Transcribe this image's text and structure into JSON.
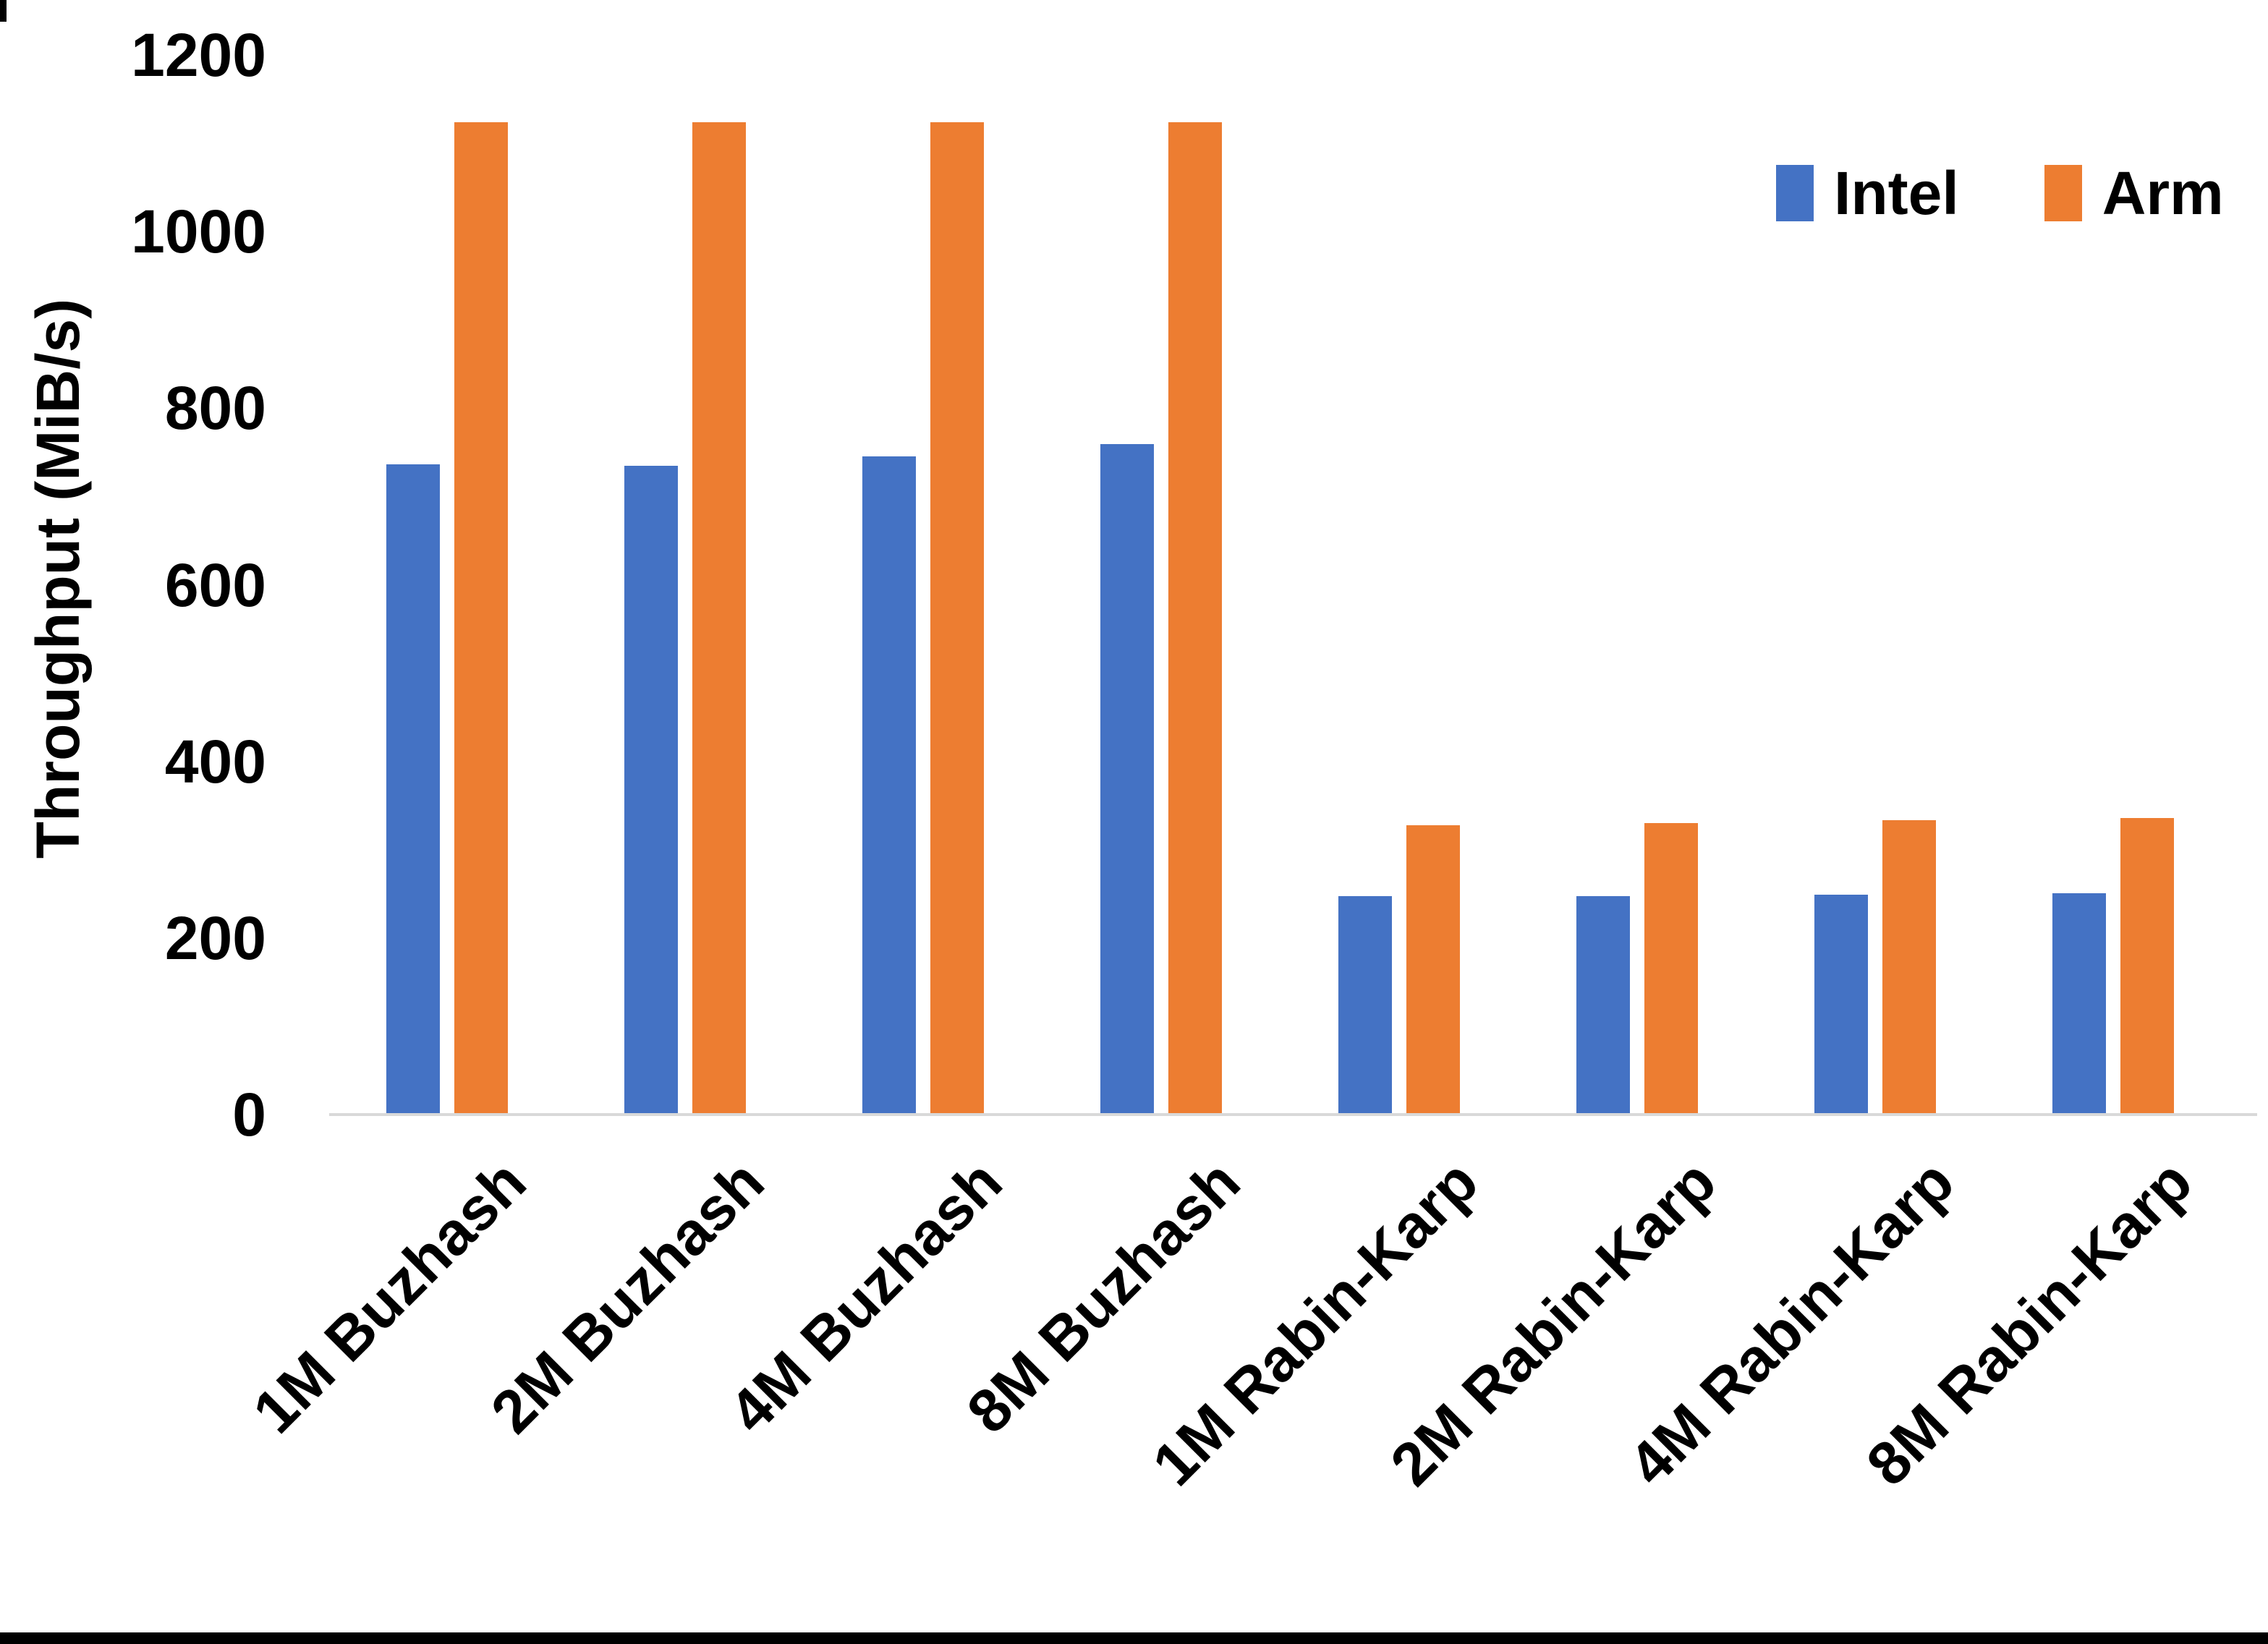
{
  "chart_data": {
    "type": "bar",
    "title": "",
    "xlabel": "",
    "ylabel": "Throughput (MiB/s)",
    "categories": [
      "1M Buzhash",
      "2M Buzhash",
      "4M Buzhash",
      "8M Buzhash",
      "1M Rabin-Karp",
      "2M Rabin-Karp",
      "4M Rabin-Karp",
      "8M Rabin-Karp"
    ],
    "series": [
      {
        "name": "Intel",
        "color": "#4472C4",
        "values": [
          736,
          735,
          745,
          759,
          247,
          247,
          249,
          251
        ]
      },
      {
        "name": "Arm",
        "color": "#ED7D31",
        "values": [
          1124,
          1124,
          1124,
          1124,
          328,
          330,
          333,
          336
        ]
      }
    ],
    "ylim": [
      0,
      1200
    ],
    "yticks": [
      0,
      200,
      400,
      600,
      800,
      1000,
      1200
    ],
    "grid": false,
    "legend_position": "top-right",
    "colors": {
      "axis_line": "#D9D9D9",
      "text": "#000000",
      "background": "#FFFFFF"
    }
  }
}
